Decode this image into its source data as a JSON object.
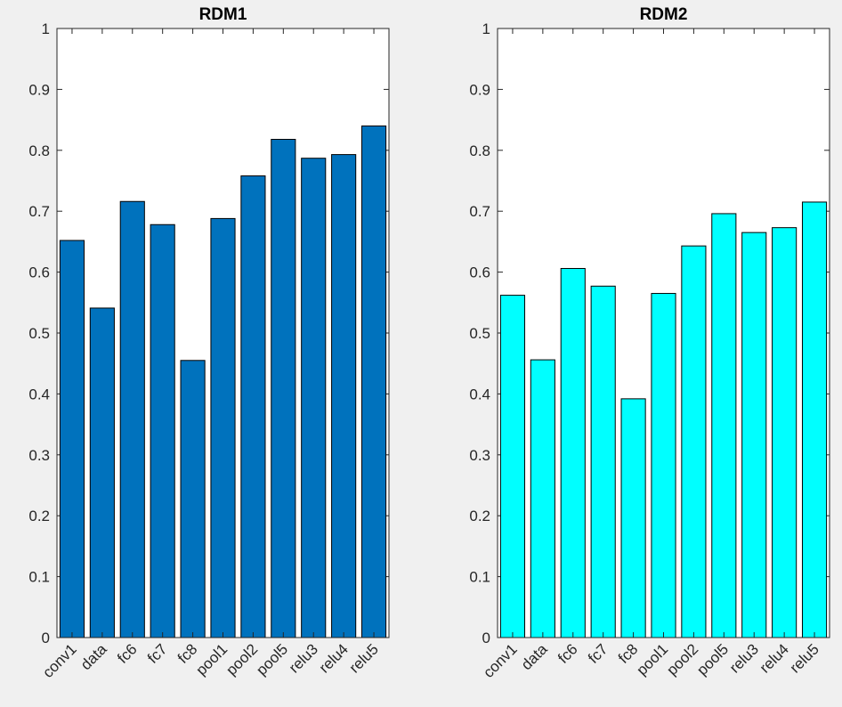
{
  "chart_data": [
    {
      "type": "bar",
      "title": "RDM1",
      "categories": [
        "conv1",
        "data",
        "fc6",
        "fc7",
        "fc8",
        "pool1",
        "pool2",
        "pool5",
        "relu3",
        "relu4",
        "relu5"
      ],
      "values": [
        0.652,
        0.541,
        0.716,
        0.678,
        0.455,
        0.688,
        0.758,
        0.818,
        0.787,
        0.793,
        0.84
      ],
      "ylim": [
        0,
        1
      ],
      "yticks": [
        "0",
        "0.1",
        "0.2",
        "0.3",
        "0.4",
        "0.5",
        "0.6",
        "0.7",
        "0.8",
        "0.9",
        "1"
      ],
      "color": "#0072bd",
      "grid": false
    },
    {
      "type": "bar",
      "title": "RDM2",
      "categories": [
        "conv1",
        "data",
        "fc6",
        "fc7",
        "fc8",
        "pool1",
        "pool2",
        "pool5",
        "relu3",
        "relu4",
        "relu5"
      ],
      "values": [
        0.562,
        0.456,
        0.606,
        0.577,
        0.392,
        0.565,
        0.643,
        0.696,
        0.665,
        0.673,
        0.715
      ],
      "ylim": [
        0,
        1
      ],
      "yticks": [
        "0",
        "0.1",
        "0.2",
        "0.3",
        "0.4",
        "0.5",
        "0.6",
        "0.7",
        "0.8",
        "0.9",
        "1"
      ],
      "color": "#00ffff",
      "grid": false
    }
  ]
}
